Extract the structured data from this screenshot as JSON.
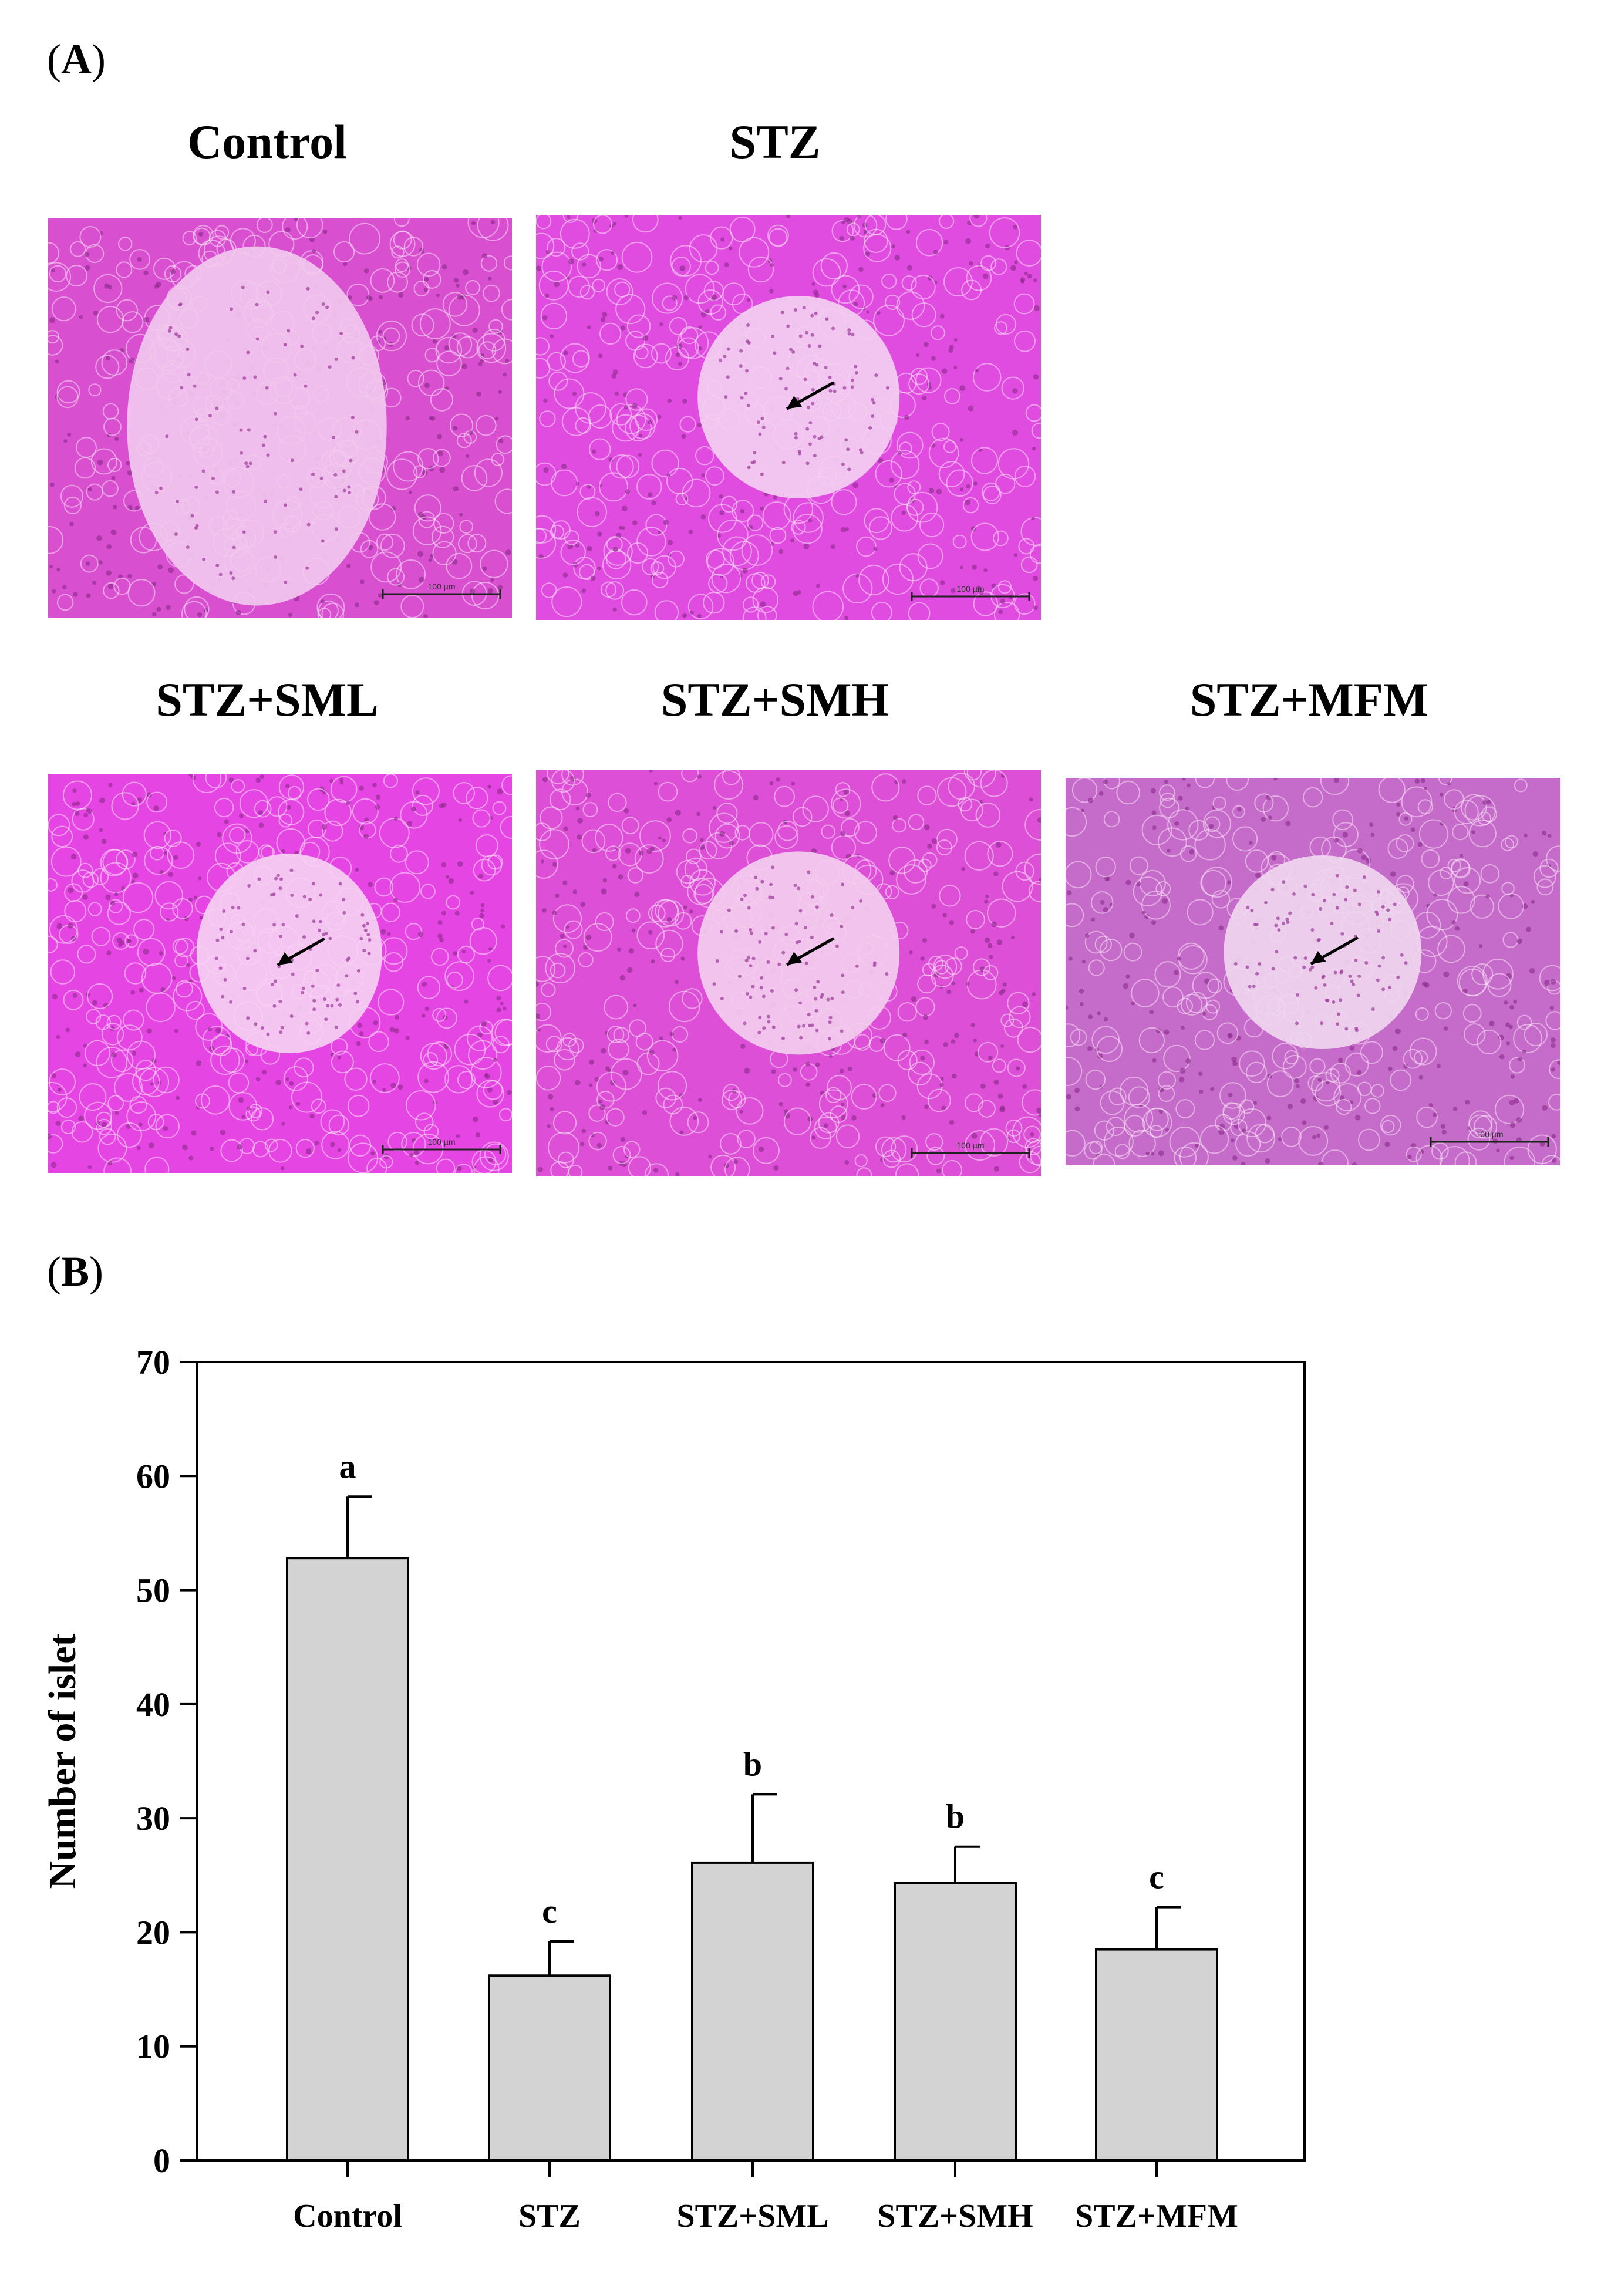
{
  "figure": {
    "panel_a": {
      "open": "(",
      "letter": "A",
      "close": ")"
    },
    "panel_b": {
      "open": "(",
      "letter": "B",
      "close": ")"
    }
  },
  "micrographs": [
    {
      "title": "Control",
      "scale_label": "100 µm",
      "tissue_color": "#d84fd0",
      "islet_color": "#f2c8ee",
      "arrow": false
    },
    {
      "title": "STZ",
      "scale_label": "100 µm",
      "tissue_color": "#e04be0",
      "islet_color": "#f3cff1",
      "arrow": true
    },
    {
      "title": "STZ+SML",
      "scale_label": "100 µm",
      "tissue_color": "#e545e2",
      "islet_color": "#f6d0f3",
      "arrow": true
    },
    {
      "title": "STZ+SMH",
      "scale_label": "100 µm",
      "tissue_color": "#dc4fd6",
      "islet_color": "#f3cdee",
      "arrow": true
    },
    {
      "title": "STZ+MFM",
      "scale_label": "100 µm",
      "tissue_color": "#c56bc9",
      "islet_color": "#efd6ef",
      "arrow": true
    }
  ],
  "chart_data": {
    "type": "bar",
    "categories": [
      "Control",
      "STZ",
      "STZ+SML",
      "STZ+SMH",
      "STZ+MFM"
    ],
    "values": [
      52.8,
      16.2,
      26.1,
      24.3,
      18.5
    ],
    "errors": [
      5.4,
      3.0,
      6.0,
      3.2,
      3.7
    ],
    "significance": [
      "a",
      "c",
      "b",
      "b",
      "c"
    ],
    "ylabel": "Number of islet",
    "xlabel": "",
    "ylim": [
      0,
      70
    ],
    "yticks": [
      0,
      10,
      20,
      30,
      40,
      50,
      60,
      70
    ],
    "bar_color": "#d3d3d3",
    "grid": false
  }
}
